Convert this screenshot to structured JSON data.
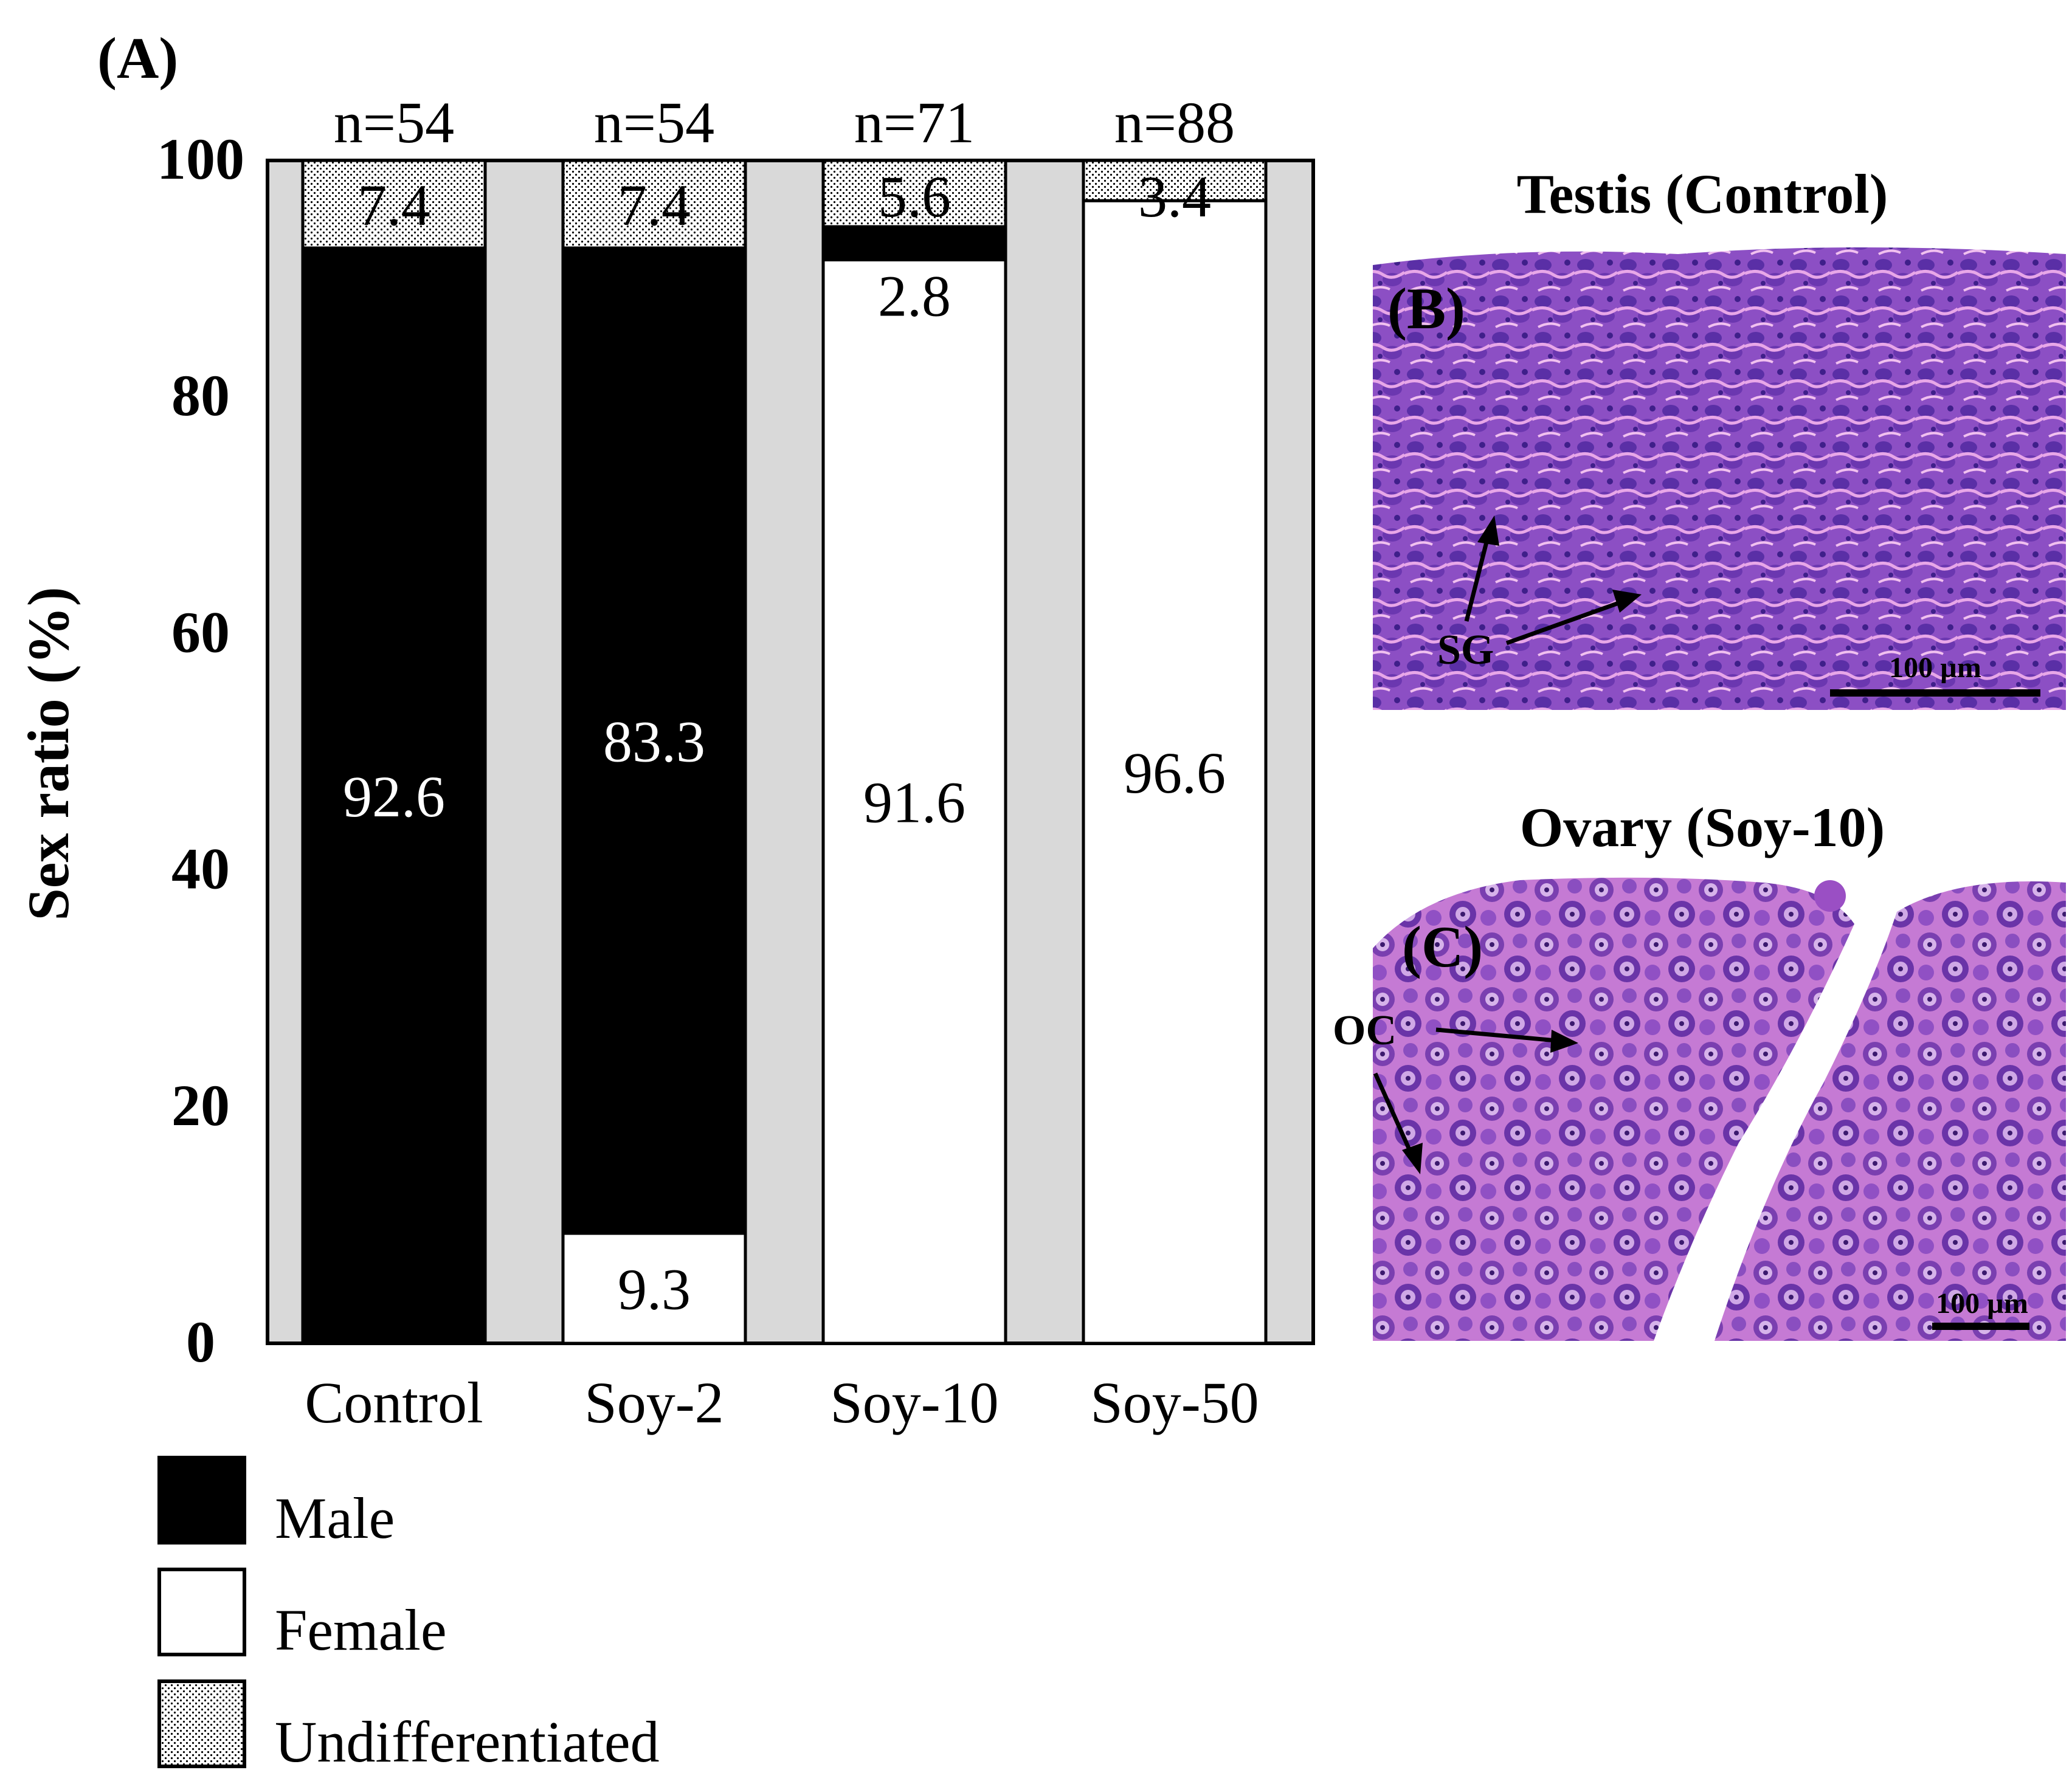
{
  "panel_a": {
    "label": "(A)"
  },
  "panel_b": {
    "label": "(B)",
    "title": "Testis (Control)",
    "annotation": "SG",
    "scale_bar": "100 µm"
  },
  "panel_c": {
    "label": "(C)",
    "title": "Ovary (Soy-10)",
    "annotation": "OC",
    "scale_bar": "100 µm"
  },
  "chart_data": {
    "type": "bar",
    "stacked": true,
    "ylabel": "Sex ratio (%)",
    "xlabel": "",
    "ylim": [
      0,
      100
    ],
    "yticks": [
      0,
      20,
      40,
      60,
      80,
      100
    ],
    "categories": [
      "Control",
      "Soy-2",
      "Soy-10",
      "Soy-50"
    ],
    "n_labels": [
      "n=54",
      "n=54",
      "n=71",
      "n=88"
    ],
    "series": [
      {
        "name": "Female",
        "values": [
          0,
          9.3,
          91.6,
          96.6
        ],
        "labels": [
          "",
          "9.3",
          "91.6",
          "96.6"
        ],
        "color": "#ffffff"
      },
      {
        "name": "Male",
        "values": [
          92.6,
          83.3,
          2.8,
          0
        ],
        "labels": [
          "92.6",
          "83.3",
          "2.8",
          ""
        ],
        "color": "#000000"
      },
      {
        "name": "Undifferentiated",
        "values": [
          7.4,
          7.4,
          5.6,
          3.4
        ],
        "labels": [
          "7.4",
          "7.4",
          "5.6",
          "3.4"
        ],
        "color": "#dcdcdc",
        "pattern": "dotted"
      }
    ],
    "legend": {
      "position": "bottom-left",
      "items": [
        "Male",
        "Female",
        "Undifferentiated"
      ]
    },
    "plot_background": "#d9d9d9",
    "grid": false
  }
}
